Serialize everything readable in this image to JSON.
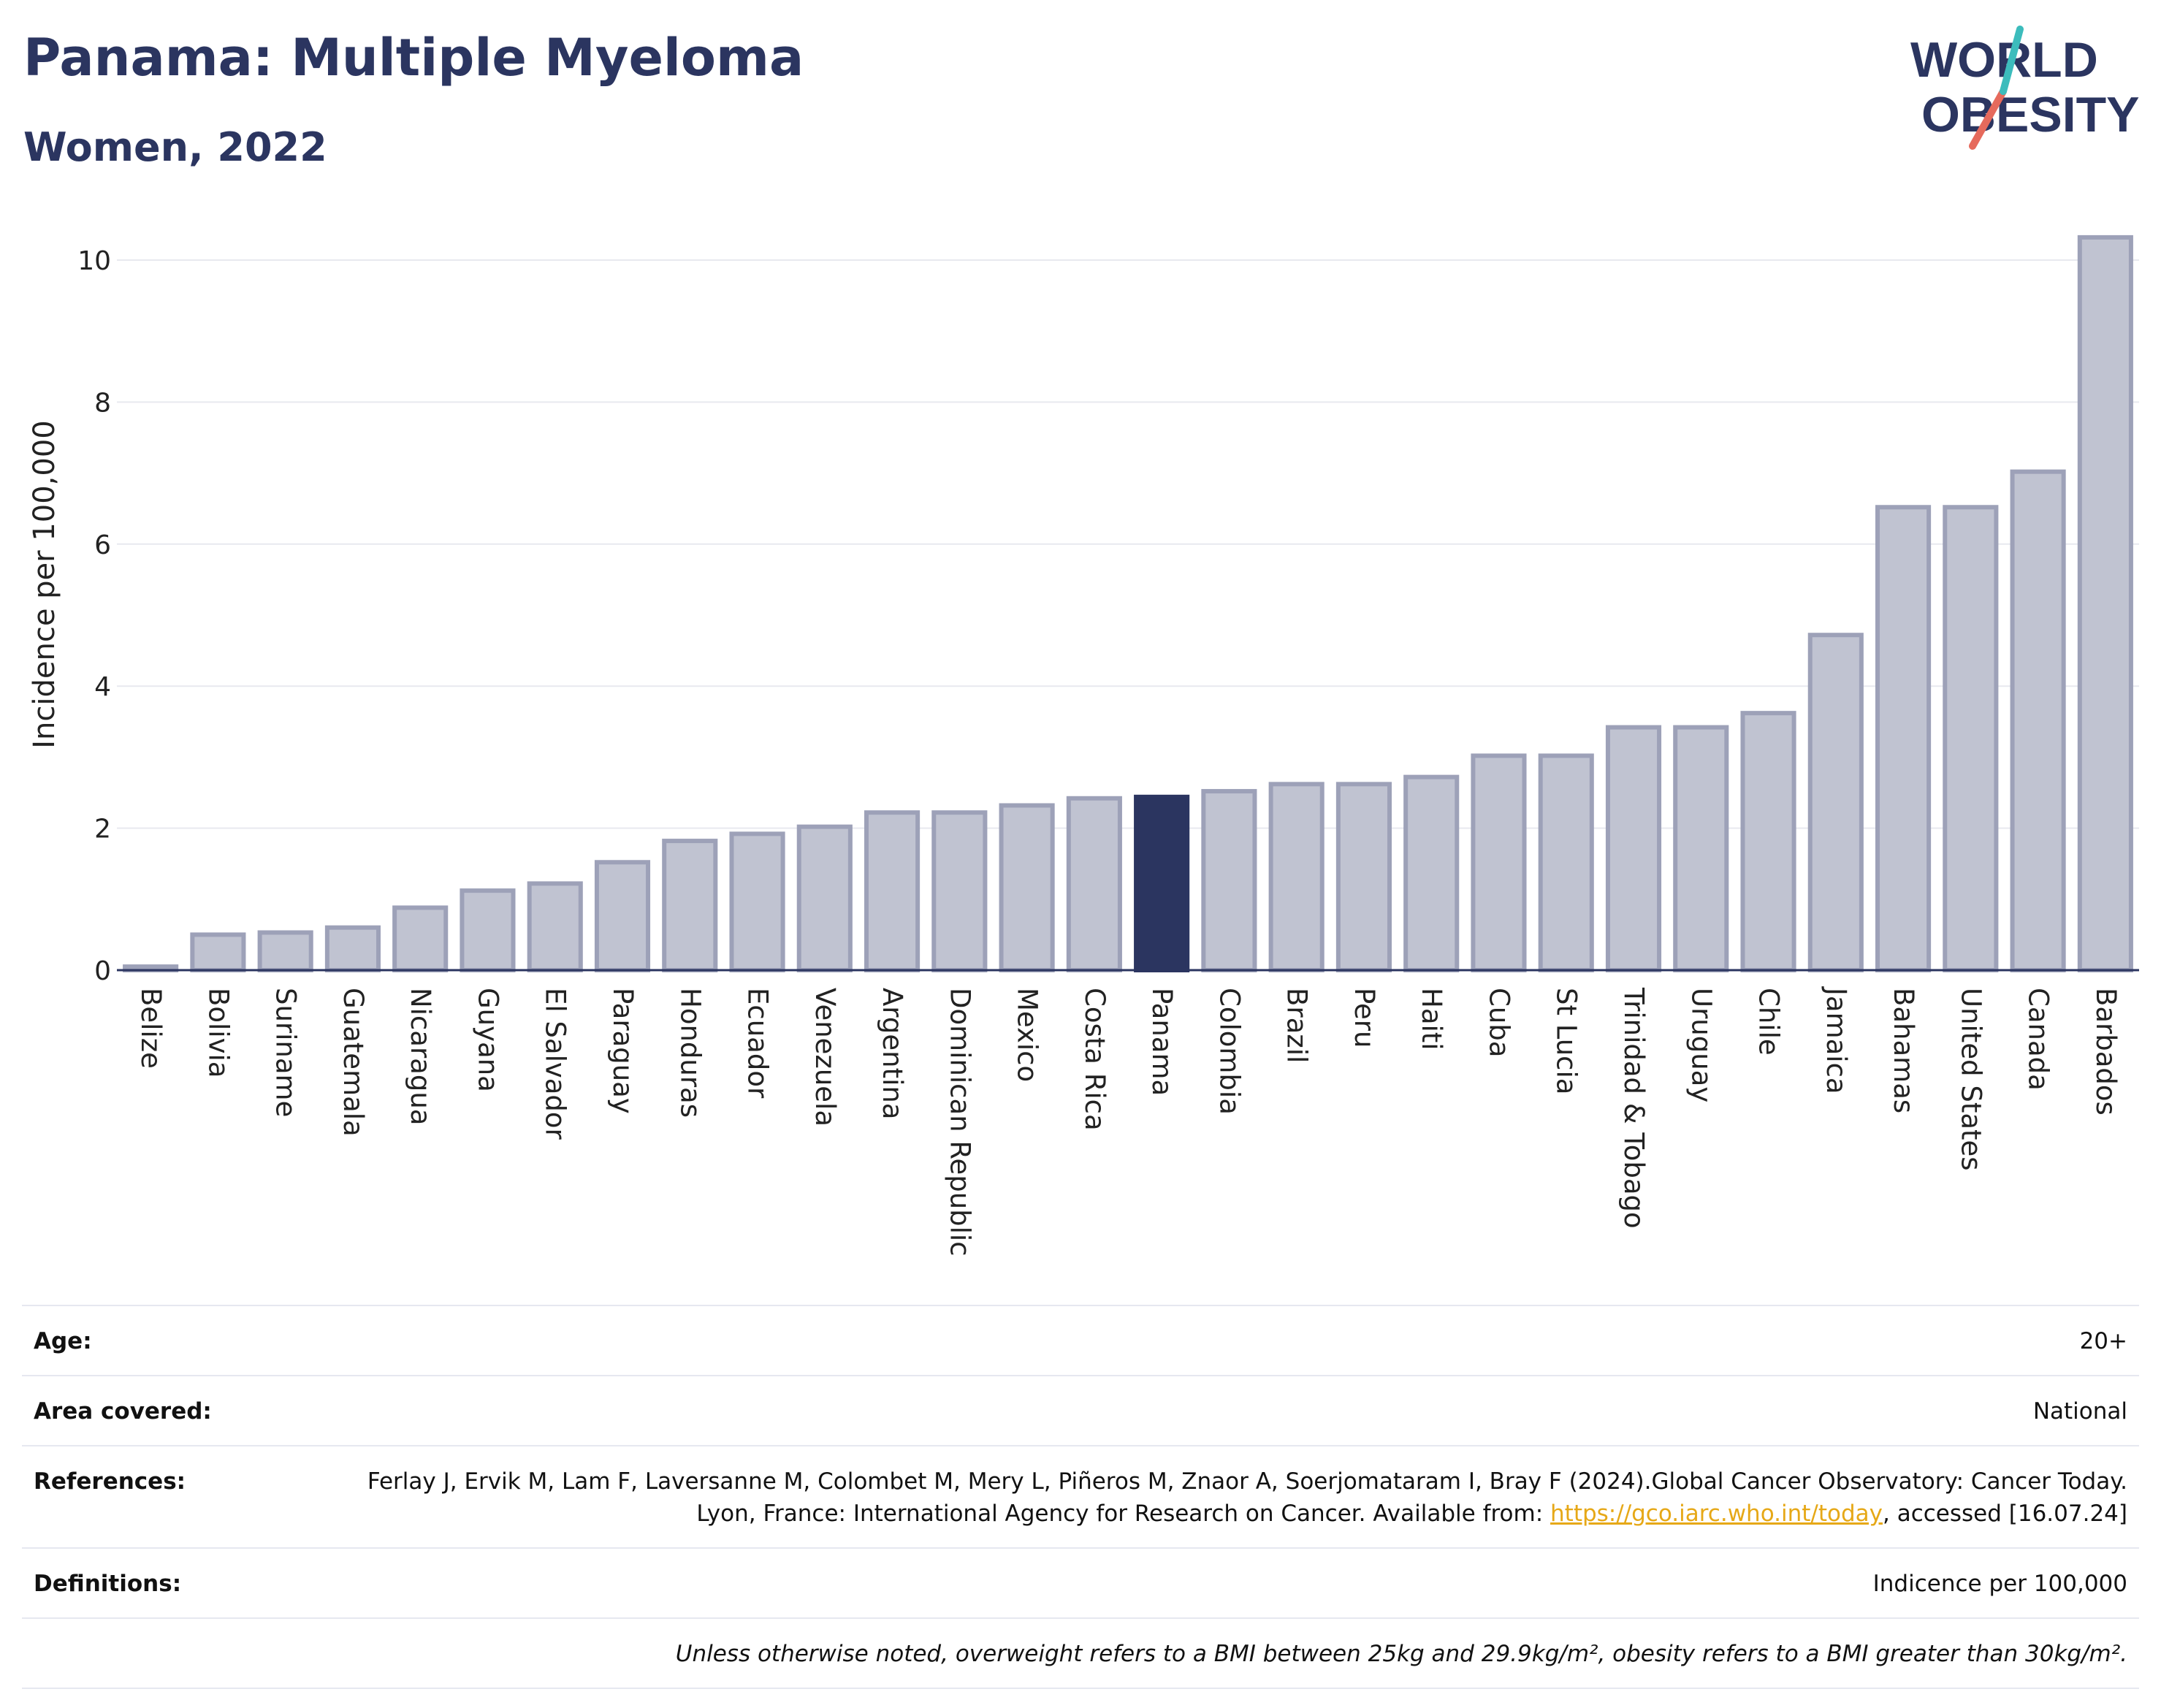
{
  "title": "Panama: Multiple Myeloma",
  "subtitle": "Women, 2022",
  "logo": {
    "line1": "WORLD",
    "line2": "OBESITY"
  },
  "colors": {
    "highlight": "#2b3560",
    "bar": "#c0c3d1",
    "bar_border": "#9da1b8",
    "grid": "#e8e9ef",
    "axis": "#2b3560"
  },
  "chart_data": {
    "type": "bar",
    "ylabel": "Incidence per 100,000",
    "ylim": [
      0,
      10.5
    ],
    "yticks": [
      0,
      2,
      4,
      6,
      8,
      10
    ],
    "highlight": "Panama",
    "categories": [
      "Belize",
      "Bolivia",
      "Suriname",
      "Guatemala",
      "Nicaragua",
      "Guyana",
      "El Salvador",
      "Paraguay",
      "Honduras",
      "Ecuador",
      "Venezuela",
      "Argentina",
      "Dominican Republic",
      "Mexico",
      "Costa Rica",
      "Panama",
      "Colombia",
      "Brazil",
      "Peru",
      "Haiti",
      "Cuba",
      "St Lucia",
      "Trinidad & Tobago",
      "Uruguay",
      "Chile",
      "Jamaica",
      "Bahamas",
      "United States",
      "Canada",
      "Barbados"
    ],
    "values": [
      0.05,
      0.5,
      0.53,
      0.6,
      0.88,
      1.12,
      1.22,
      1.52,
      1.82,
      1.92,
      2.02,
      2.22,
      2.22,
      2.32,
      2.42,
      2.44,
      2.52,
      2.62,
      2.62,
      2.72,
      3.02,
      3.02,
      3.42,
      3.42,
      3.62,
      4.72,
      6.52,
      6.52,
      7.02,
      10.32
    ]
  },
  "info": {
    "age_label": "Age:",
    "age_value": "20+",
    "area_label": "Area covered:",
    "area_value": "National",
    "ref_label": "References:",
    "ref_text_1": "Ferlay J, Ervik M, Lam F, Laversanne M, Colombet M, Mery L, Piñeros M, Znaor A, Soerjomataram I, Bray F (2024).Global Cancer Observatory: Cancer Today. Lyon, France: International Agency for Research on Cancer. Available from: ",
    "ref_link": "https://gco.iarc.who.int/today",
    "ref_text_2": ", accessed [16.07.24]",
    "def_label": "Definitions:",
    "def_value": "Indicence per 100,000",
    "note": "Unless otherwise noted, overweight refers to a BMI between 25kg and 29.9kg/m², obesity refers to a BMI greater than 30kg/m²."
  }
}
